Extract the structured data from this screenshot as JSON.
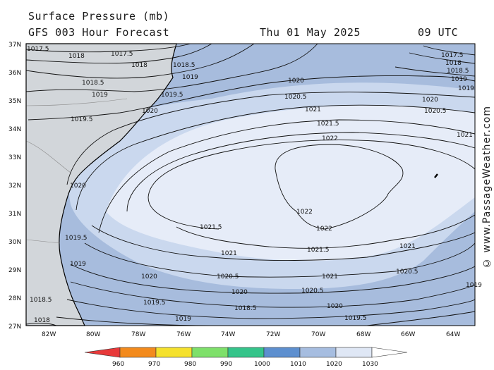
{
  "header": {
    "title": "Surface Pressure (mb)",
    "subtitle": "GFS 003 Hour Forecast",
    "valid_date": "Thu 01 May 2025",
    "valid_time": "09 UTC"
  },
  "watermark": "© www.PassageWeather.com",
  "axes": {
    "lat_labels": [
      "37N",
      "36N",
      "35N",
      "34N",
      "33N",
      "32N",
      "31N",
      "30N",
      "29N",
      "28N",
      "27N"
    ],
    "lon_labels": [
      "82W",
      "80W",
      "78W",
      "76W",
      "74W",
      "72W",
      "70W",
      "68W",
      "66W",
      "64W"
    ]
  },
  "colors": {
    "bg_low": "#a7bcdd",
    "bg_mid": "#cad8ee",
    "bg_high": "#e6ecf8",
    "land": "#d2d6da",
    "coast": "#000000"
  },
  "contour_labels": [
    "1017.5",
    "1018",
    "1017.5",
    "1018",
    "1018.5",
    "1019",
    "1018.5",
    "1019",
    "1019.5",
    "1020",
    "1019.5",
    "1017.5",
    "1018",
    "1018.5",
    "1019",
    "1019",
    "1020",
    "1020.5",
    "1020",
    "1020.5",
    "1021",
    "1021.5",
    "1022",
    "1021",
    "1022",
    "1022",
    "1021.5",
    "1021",
    "1021.5",
    "1021",
    "1020.5",
    "1021",
    "1020.5",
    "1020",
    "1020.5",
    "1020",
    "1019.5",
    "1019",
    "1019.5",
    "1019",
    "1018.5",
    "1018.5",
    "1018",
    "1020",
    "1020",
    "1019.5",
    "1019"
  ],
  "colorbar": {
    "ticks": [
      "960",
      "970",
      "980",
      "990",
      "1000",
      "1010",
      "1020",
      "1030"
    ],
    "colors": [
      "#e8393a",
      "#f38a1c",
      "#f5e12c",
      "#7ee06a",
      "#35c48a",
      "#5d8fcf",
      "#a6bde0",
      "#dfe7f5"
    ]
  }
}
